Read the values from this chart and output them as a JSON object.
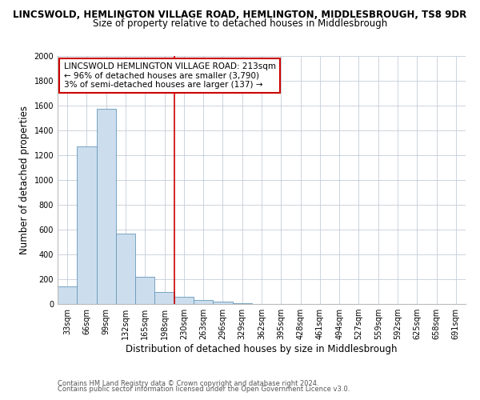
{
  "title": "LINCSWOLD, HEMLINGTON VILLAGE ROAD, HEMLINGTON, MIDDLESBROUGH, TS8 9DR",
  "subtitle": "Size of property relative to detached houses in Middlesbrough",
  "xlabel": "Distribution of detached houses by size in Middlesbrough",
  "ylabel": "Number of detached properties",
  "bar_color": "#ccdded",
  "bar_edge_color": "#6699bb",
  "categories": [
    "33sqm",
    "66sqm",
    "99sqm",
    "132sqm",
    "165sqm",
    "198sqm",
    "230sqm",
    "263sqm",
    "296sqm",
    "329sqm",
    "362sqm",
    "395sqm",
    "428sqm",
    "461sqm",
    "494sqm",
    "527sqm",
    "559sqm",
    "592sqm",
    "625sqm",
    "658sqm",
    "691sqm"
  ],
  "values": [
    140,
    1270,
    1575,
    570,
    220,
    95,
    55,
    30,
    18,
    8,
    0,
    0,
    0,
    0,
    0,
    0,
    0,
    0,
    0,
    0,
    0
  ],
  "ylim": [
    0,
    2000
  ],
  "yticks": [
    0,
    200,
    400,
    600,
    800,
    1000,
    1200,
    1400,
    1600,
    1800,
    2000
  ],
  "vline_x": 5.5,
  "vline_color": "#cc0000",
  "annotation_line1": "LINCSWOLD HEMLINGTON VILLAGE ROAD: 213sqm",
  "annotation_line2": "← 96% of detached houses are smaller (3,790)",
  "annotation_line3": "3% of semi-detached houses are larger (137) →",
  "annotation_box_color": "#ffffff",
  "annotation_box_edge": "#cc0000",
  "footer1": "Contains HM Land Registry data © Crown copyright and database right 2024.",
  "footer2": "Contains public sector information licensed under the Open Government Licence v3.0.",
  "background_color": "#ffffff",
  "grid_color": "#c5cdd8",
  "title_fontsize": 8.5,
  "subtitle_fontsize": 8.5,
  "axis_label_fontsize": 8.5,
  "tick_fontsize": 7.0,
  "annotation_fontsize": 7.5,
  "footer_fontsize": 6.0
}
